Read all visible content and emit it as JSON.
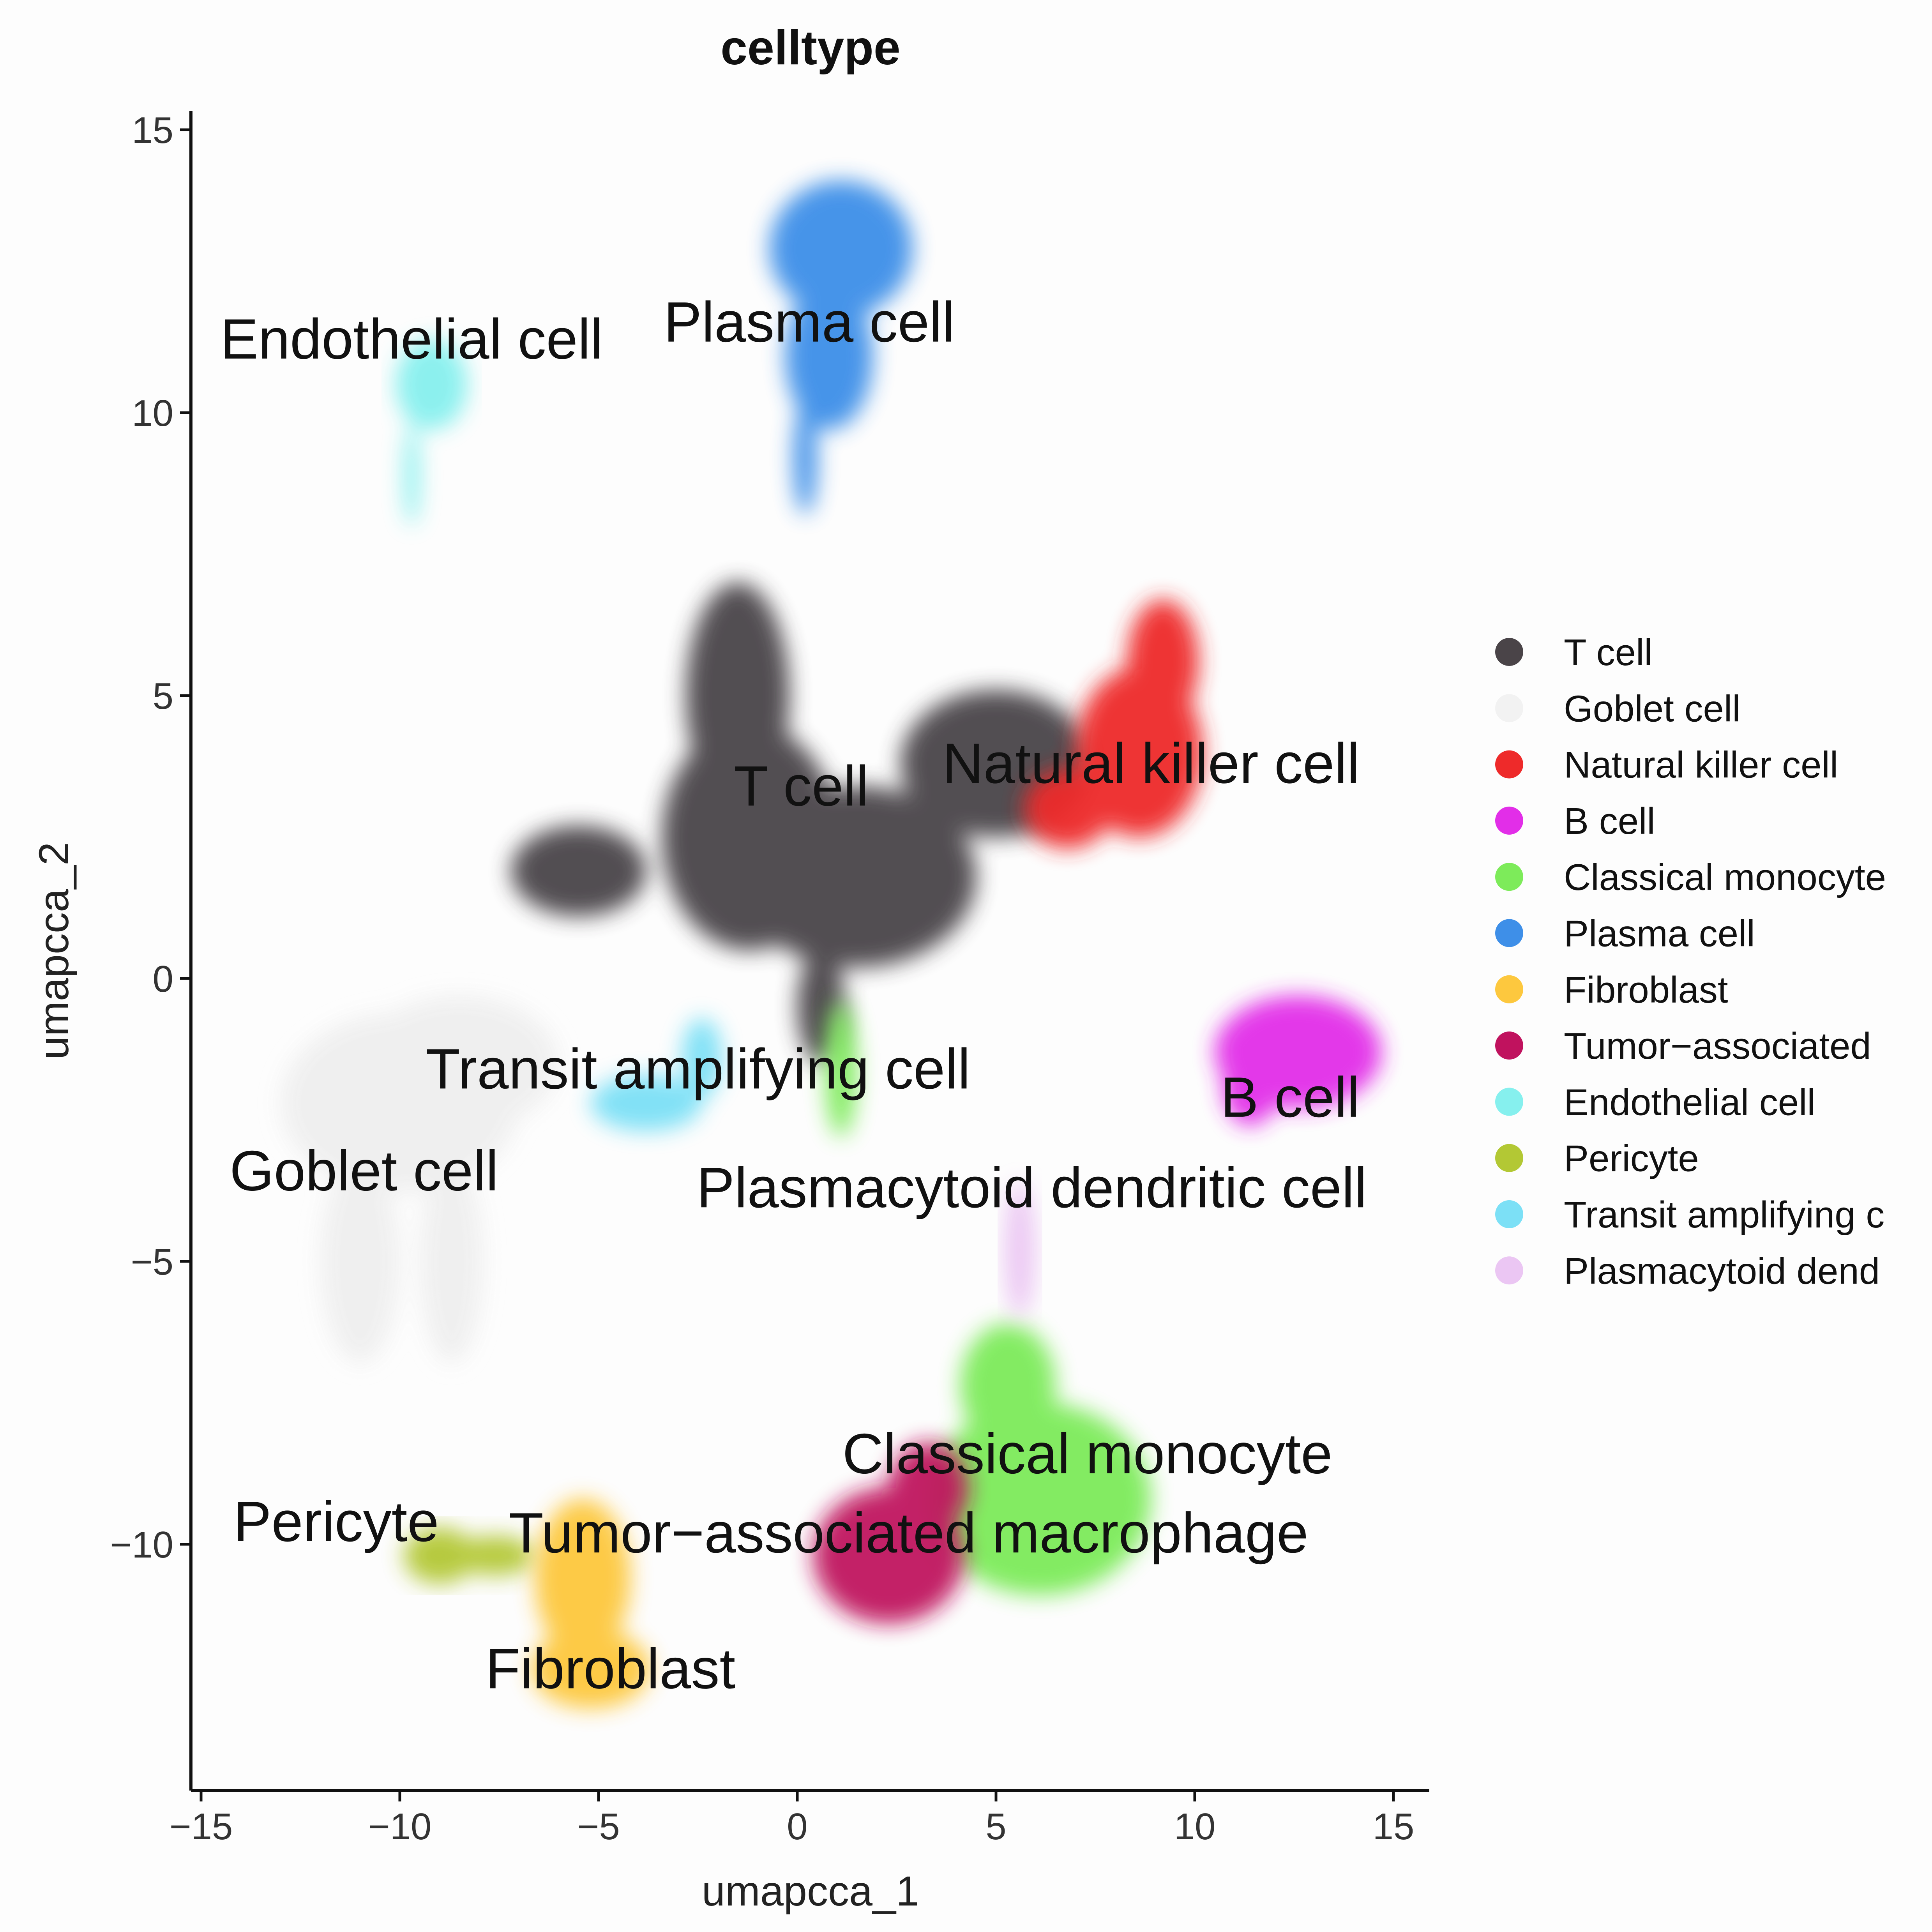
{
  "chart_data": {
    "type": "scatter",
    "title": "celltype",
    "xlabel": "umapcca_1",
    "ylabel": "umapcca_2",
    "xlim": [
      -15.5,
      16
    ],
    "ylim": [
      -14,
      15.5
    ],
    "xticks": [
      -15,
      -10,
      -5,
      0,
      5,
      10,
      15
    ],
    "yticks": [
      -10,
      -5,
      0,
      5,
      10,
      15
    ],
    "xtick_labels": [
      "−15",
      "−10",
      "−5",
      "0",
      "5",
      "10",
      "15"
    ],
    "ytick_labels": [
      "−10",
      "−5",
      "0",
      "5",
      "10",
      "15"
    ],
    "grid": false,
    "legend_placement": "right",
    "legend": [
      {
        "label": "T cell",
        "color": "#4a4448"
      },
      {
        "label": "Goblet cell",
        "color": "#f2f2f2"
      },
      {
        "label": "Natural killer cell",
        "color": "#ee2a2a"
      },
      {
        "label": "B cell",
        "color": "#e22ee8"
      },
      {
        "label": "Classical monocyte",
        "color": "#7deb5a"
      },
      {
        "label": "Plasma cell",
        "color": "#3e8fe8"
      },
      {
        "label": "Fibroblast",
        "color": "#fdc83e"
      },
      {
        "label": "Tumor−associated",
        "color": "#c0125e"
      },
      {
        "label": "Endothelial cell",
        "color": "#86f0ee"
      },
      {
        "label": "Pericyte",
        "color": "#b3c834"
      },
      {
        "label": "Transit amplifying c",
        "color": "#7ce0f6"
      },
      {
        "label": "Plasmacytoid dend",
        "color": "#ebc6f3"
      }
    ],
    "clusters": [
      {
        "name": "Goblet cell",
        "color": "#efefef",
        "blobs": [
          [
            -10,
            -2.2,
            3,
            1.6
          ],
          [
            -11,
            -5,
            1,
            1.8
          ],
          [
            -8.7,
            -5,
            0.8,
            1.8
          ],
          [
            -8.5,
            -1.5,
            2.5,
            1.2
          ]
        ]
      },
      {
        "name": "T cell",
        "color": "#4a4448",
        "blobs": [
          [
            -1.5,
            5,
            1.3,
            2
          ],
          [
            -1.2,
            2.5,
            2.2,
            2
          ],
          [
            -5.5,
            1.9,
            1.7,
            0.8
          ],
          [
            1.5,
            1.8,
            3,
            1.6
          ],
          [
            5,
            3.8,
            2.4,
            1.3
          ],
          [
            0.6,
            -0.5,
            0.6,
            1
          ]
        ]
      },
      {
        "name": "Natural killer cell",
        "color": "#ee2a2a",
        "blobs": [
          [
            8.6,
            4,
            1.6,
            1.5
          ],
          [
            9.2,
            5.6,
            0.9,
            1.1
          ],
          [
            6.8,
            3,
            1.1,
            0.7
          ]
        ]
      },
      {
        "name": "Plasma cell",
        "color": "#3e8fe8",
        "blobs": [
          [
            1.1,
            12.9,
            1.8,
            1.2
          ],
          [
            0.8,
            11,
            1.1,
            1.3
          ],
          [
            0.2,
            9.2,
            0.3,
            1
          ]
        ]
      },
      {
        "name": "Endothelial cell",
        "color": "#86f0ee",
        "blobs": [
          [
            -9.2,
            10.5,
            0.9,
            0.8
          ],
          [
            -9.7,
            8.9,
            0.2,
            0.9
          ]
        ]
      },
      {
        "name": "B cell",
        "color": "#e22ee8",
        "blobs": [
          [
            12.6,
            -1.3,
            2.1,
            1.0
          ],
          [
            11.4,
            -1.9,
            0.7,
            0.7
          ]
        ]
      },
      {
        "name": "Transit amplifying cell",
        "color": "#7ce0f6",
        "blobs": [
          [
            -3.8,
            -2.2,
            1.4,
            0.5
          ],
          [
            -2.4,
            -1.4,
            0.5,
            0.7
          ]
        ]
      },
      {
        "name": "Classical monocyte",
        "color": "#7deb5a",
        "blobs": [
          [
            6.1,
            -9.2,
            2.8,
            1.7
          ],
          [
            5.3,
            -7.2,
            1.2,
            1.1
          ],
          [
            1.1,
            -1.6,
            0.4,
            1.2
          ]
        ]
      },
      {
        "name": "Plasmacytoid dendritic cell",
        "color": "#ebc6f3",
        "blobs": [
          [
            5.6,
            -4.8,
            0.4,
            1.2
          ]
        ]
      },
      {
        "name": "Tumor-associated macrophage",
        "color": "#c0125e",
        "blobs": [
          [
            2.3,
            -10.2,
            1.9,
            1.2
          ],
          [
            3.3,
            -9,
            1,
            0.8
          ]
        ]
      },
      {
        "name": "Pericyte",
        "color": "#b3c834",
        "blobs": [
          [
            -9,
            -10.2,
            0.9,
            0.5
          ],
          [
            -7.6,
            -10.2,
            1,
            0.35
          ]
        ]
      },
      {
        "name": "Fibroblast",
        "color": "#fdc83e",
        "blobs": [
          [
            -5.4,
            -10.6,
            1.2,
            1.4
          ],
          [
            -5.2,
            -12.2,
            1.5,
            0.7
          ]
        ]
      }
    ],
    "labels": [
      {
        "text": "Endothelial cell",
        "x": -9.7,
        "y": 11.3
      },
      {
        "text": "Plasma cell",
        "x": 0.3,
        "y": 11.6
      },
      {
        "text": "T cell",
        "x": 0.1,
        "y": 3.4
      },
      {
        "text": "Natural killer cell",
        "x": 8.9,
        "y": 3.8
      },
      {
        "text": "Transit amplifying cell",
        "x": -2.5,
        "y": -1.6
      },
      {
        "text": "B cell",
        "x": 12.4,
        "y": -2.1
      },
      {
        "text": "Goblet cell",
        "x": -10.9,
        "y": -3.4
      },
      {
        "text": "Plasmacytoid dendritic cell",
        "x": 5.9,
        "y": -3.7
      },
      {
        "text": "Classical monocyte",
        "x": 7.3,
        "y": -8.4
      },
      {
        "text": "Pericyte",
        "x": -11.6,
        "y": -9.6
      },
      {
        "text": "Tumor−associated macrophage",
        "x": 2.8,
        "y": -9.8
      },
      {
        "text": "Fibroblast",
        "x": -4.7,
        "y": -12.2
      }
    ]
  }
}
